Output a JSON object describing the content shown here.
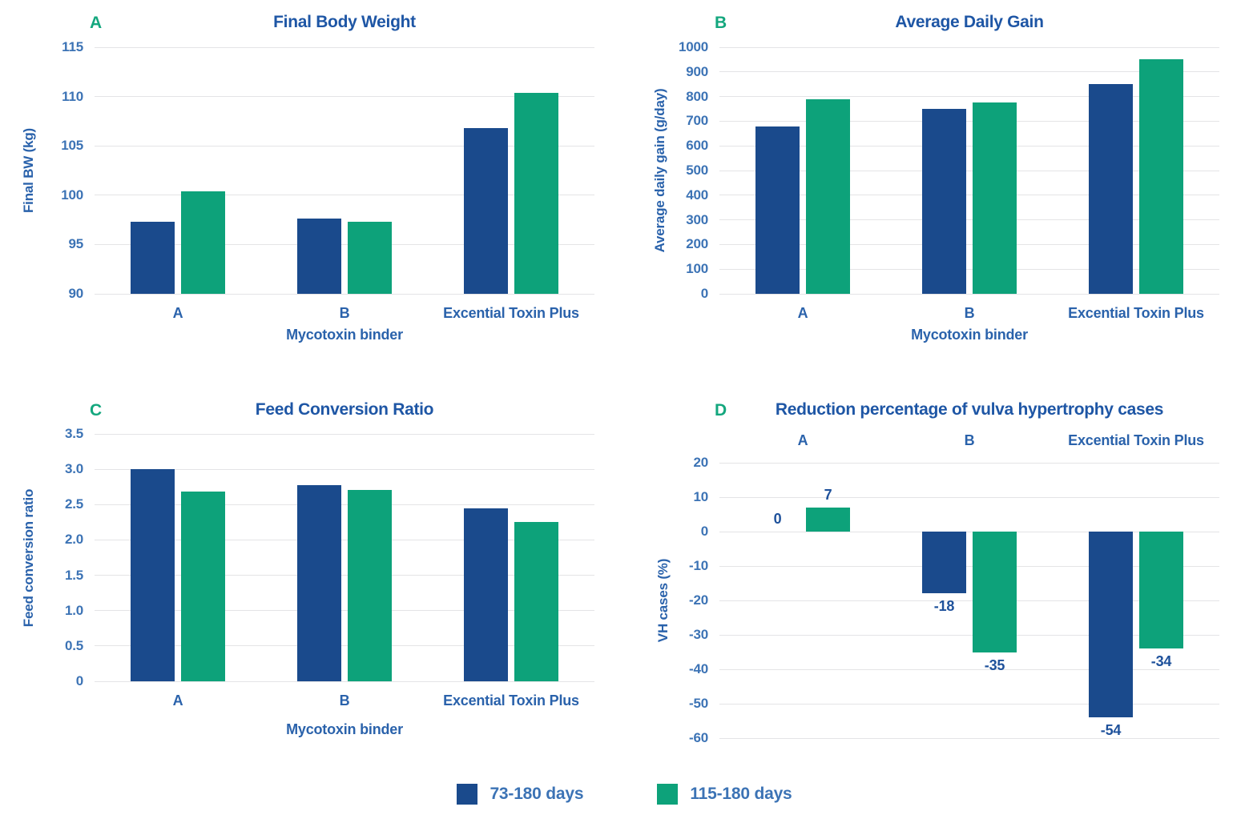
{
  "colors": {
    "series1": "#1a4a8c",
    "series2": "#0da27a",
    "title_text": "#1e56a5",
    "axis_text": "#2a62ab",
    "tick_text": "#3c73b5",
    "value_label": "#1e519b",
    "panel_letter": "#14a77e",
    "gridline": "#e4e4e6"
  },
  "legend": {
    "items": [
      {
        "label": "73-180 days",
        "color_key": "series1"
      },
      {
        "label": "115-180 days",
        "color_key": "series2"
      }
    ]
  },
  "chart_data": [
    {
      "type": "bar",
      "panel_label": "A",
      "title": "Final Body Weight",
      "ylabel": "Final BW (kg)",
      "xlabel": "Mycotoxin binder",
      "categories": [
        "A",
        "B",
        "Excential Toxin Plus"
      ],
      "series": [
        {
          "name": "73-180 days",
          "values": [
            97.3,
            97.6,
            106.8
          ]
        },
        {
          "name": "115-180 days",
          "values": [
            100.4,
            97.3,
            110.4
          ]
        }
      ],
      "ylim": [
        90,
        115
      ],
      "y_ticks": [
        "115",
        "110",
        "105",
        "100",
        "95",
        "90"
      ],
      "baseline": 90,
      "category_position": "bottom",
      "show_value_labels": false,
      "grid": true,
      "legend_position": "bottom-shared"
    },
    {
      "type": "bar",
      "panel_label": "B",
      "title": "Average Daily Gain",
      "ylabel": "Average daily gain (g/day)",
      "xlabel": "Mycotoxin binder",
      "categories": [
        "A",
        "B",
        "Excential Toxin Plus"
      ],
      "series": [
        {
          "name": "73-180 days",
          "values": [
            680,
            750,
            850
          ]
        },
        {
          "name": "115-180 days",
          "values": [
            790,
            775,
            950
          ]
        }
      ],
      "ylim": [
        0,
        1000
      ],
      "y_ticks": [
        "1000",
        "900",
        "800",
        "700",
        "600",
        "500",
        "400",
        "300",
        "200",
        "100",
        "0"
      ],
      "baseline": 0,
      "category_position": "bottom",
      "show_value_labels": false,
      "grid": true,
      "legend_position": "bottom-shared"
    },
    {
      "type": "bar",
      "panel_label": "C",
      "title": "Feed Conversion Ratio",
      "ylabel": "Feed conversion ratio",
      "xlabel": "Mycotoxin binder",
      "categories": [
        "A",
        "B",
        "Excential Toxin Plus"
      ],
      "series": [
        {
          "name": "73-180 days",
          "values": [
            3.0,
            2.78,
            2.45
          ]
        },
        {
          "name": "115-180 days",
          "values": [
            2.68,
            2.71,
            2.25
          ]
        }
      ],
      "ylim": [
        0,
        3.5
      ],
      "y_ticks": [
        "3.5",
        "3.0",
        "2.5",
        "2.0",
        "1.5",
        "1.0",
        "0.5",
        "0"
      ],
      "baseline": 0,
      "category_position": "bottom",
      "show_value_labels": false,
      "grid": true,
      "legend_position": "bottom-shared"
    },
    {
      "type": "bar",
      "panel_label": "D",
      "title": "Reduction percentage of vulva hypertrophy cases",
      "ylabel": "VH cases (%)",
      "xlabel": "",
      "categories": [
        "A",
        "B",
        "Excential Toxin Plus"
      ],
      "series": [
        {
          "name": "73-180 days",
          "values": [
            0,
            -18,
            -54
          ]
        },
        {
          "name": "115-180 days",
          "values": [
            7,
            -35,
            -34
          ]
        }
      ],
      "ylim": [
        -60,
        20
      ],
      "y_ticks": [
        "20",
        "10",
        "0",
        "-10",
        "-20",
        "-30",
        "-40",
        "-50",
        "-60"
      ],
      "baseline": 0,
      "category_position": "top",
      "show_value_labels": true,
      "value_labels": [
        "0",
        "7",
        "-18",
        "-35",
        "-54",
        "-34"
      ],
      "grid": true,
      "legend_position": "bottom-shared"
    }
  ]
}
